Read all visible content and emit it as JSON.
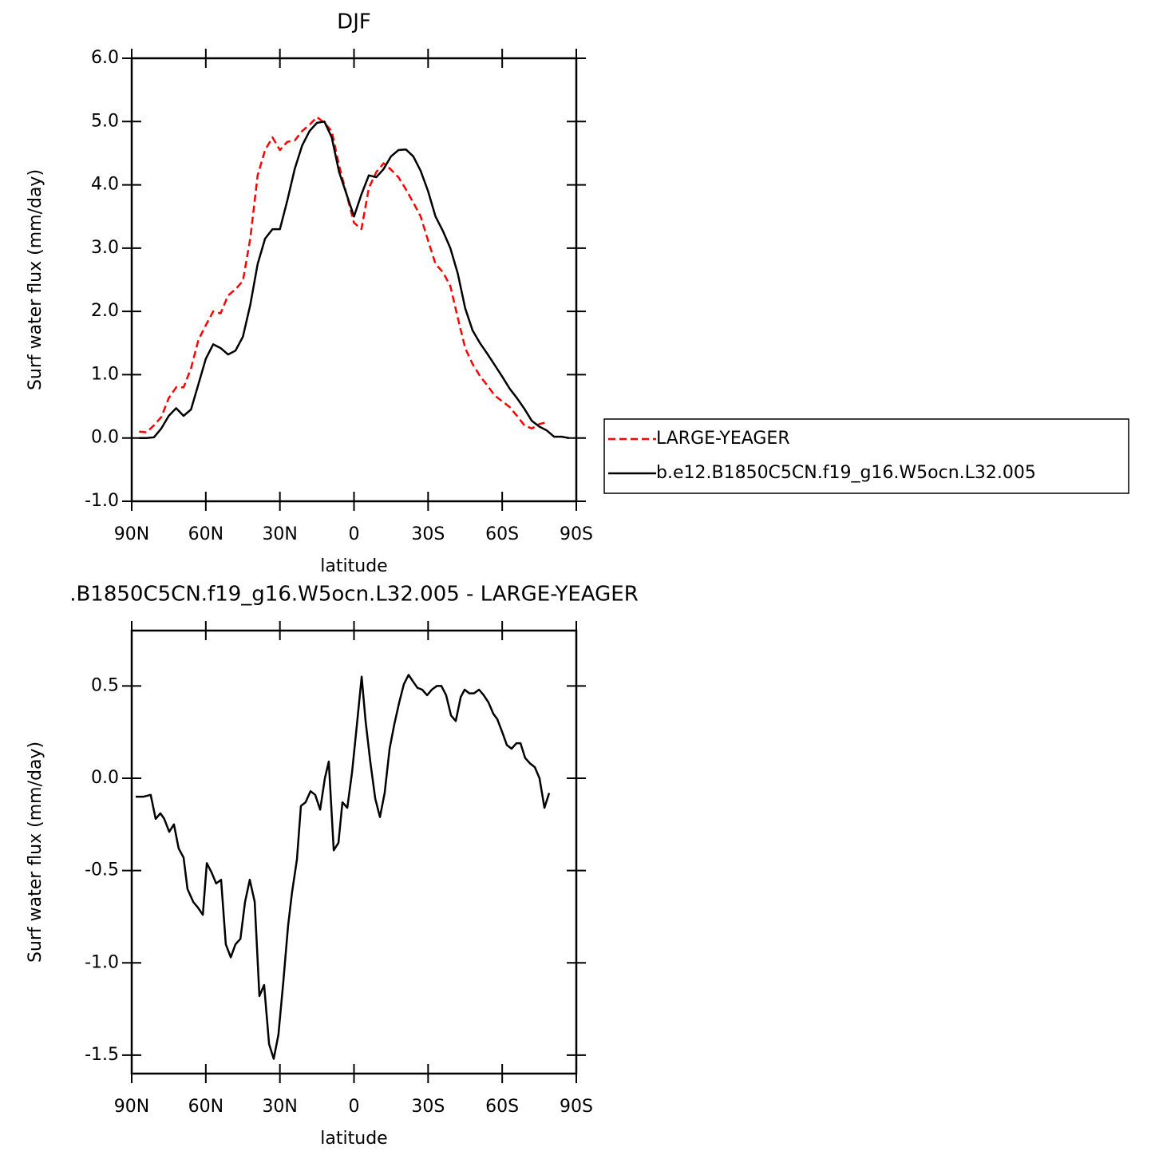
{
  "chart_data": [
    {
      "type": "line",
      "title": "DJF",
      "x_label": "latitude",
      "y_label": "Surf water flux (mm/day)",
      "x": [
        87,
        84,
        81,
        78,
        75,
        72,
        69,
        66,
        63,
        60,
        57,
        54,
        51,
        48,
        45,
        42,
        39,
        36,
        33,
        30,
        27,
        24,
        21,
        18,
        15,
        12,
        9,
        6,
        3,
        0,
        -3,
        -6,
        -9,
        -12,
        -15,
        -18,
        -21,
        -24,
        -27,
        -30,
        -33,
        -36,
        -39,
        -42,
        -45,
        -48,
        -51,
        -54,
        -57,
        -60,
        -63,
        -66,
        -69,
        -72,
        -75,
        -78,
        -81,
        -84,
        -87
      ],
      "xlim": [
        90,
        -90
      ],
      "xticks": [
        {
          "value": 90,
          "label": "90N"
        },
        {
          "value": 60,
          "label": "60N"
        },
        {
          "value": 30,
          "label": "30N"
        },
        0,
        {
          "value": -30,
          "label": "30S"
        },
        {
          "value": -60,
          "label": "60S"
        },
        {
          "value": -90,
          "label": "90S"
        }
      ],
      "ylim": [
        -1,
        6
      ],
      "yticks": [
        {
          "value": -1,
          "label": "-1.0"
        },
        {
          "value": 0,
          "label": "0.0"
        },
        {
          "value": 1,
          "label": "1.0"
        },
        {
          "value": 2,
          "label": "2.0"
        },
        {
          "value": 3,
          "label": "3.0"
        },
        {
          "value": 4,
          "label": "4.0"
        },
        {
          "value": 5,
          "label": "5.0"
        },
        {
          "value": 6,
          "label": "6.0"
        }
      ],
      "legend": "right",
      "series": [
        {
          "name": "LARGE-YEAGER",
          "color": "#ff0000",
          "dash": true,
          "values": [
            0.1,
            0.09,
            0.2,
            0.33,
            0.63,
            0.8,
            0.8,
            1.1,
            1.55,
            1.78,
            2.0,
            1.97,
            2.25,
            2.35,
            2.48,
            3.15,
            4.15,
            4.55,
            4.75,
            4.55,
            4.68,
            4.7,
            4.85,
            4.95,
            5.07,
            4.98,
            4.85,
            4.3,
            3.85,
            3.4,
            3.3,
            3.95,
            4.2,
            4.34,
            4.24,
            4.12,
            3.93,
            3.72,
            3.5,
            3.12,
            2.75,
            2.62,
            2.4,
            1.9,
            1.42,
            1.17,
            0.98,
            0.83,
            0.67,
            0.58,
            0.49,
            0.35,
            0.2,
            0.15,
            0.22,
            0.25,
            null,
            null,
            null
          ]
        },
        {
          "name": "b.e12.B1850C5CN.f19_g16.W5ocn.L32.005",
          "color": "#000000",
          "dash": false,
          "values": [
            0.0,
            0.0,
            0.01,
            0.15,
            0.35,
            0.47,
            0.35,
            0.45,
            0.85,
            1.25,
            1.48,
            1.42,
            1.32,
            1.38,
            1.6,
            2.1,
            2.75,
            3.15,
            3.3,
            3.3,
            3.75,
            4.25,
            4.62,
            4.85,
            4.98,
            5.0,
            4.75,
            4.2,
            3.85,
            3.5,
            3.85,
            4.15,
            4.12,
            4.25,
            4.45,
            4.55,
            4.56,
            4.45,
            4.22,
            3.9,
            3.5,
            3.27,
            3.0,
            2.6,
            2.05,
            1.7,
            1.5,
            1.33,
            1.15,
            0.97,
            0.78,
            0.63,
            0.46,
            0.27,
            0.18,
            0.12,
            0.02,
            0.02,
            0.0
          ]
        }
      ]
    },
    {
      "type": "line",
      "title": ".B1850C5CN.f19_g16.W5ocn.L32.005 - LARGE-YEAGER",
      "x_label": "latitude",
      "y_label": "Surf water flux (mm/day)",
      "x": [
        88.4,
        85.2,
        82.3,
        80.3,
        78.4,
        76.8,
        74.8,
        72.9,
        71,
        69,
        67.4,
        65.1,
        63.2,
        61.2,
        59.6,
        57.7,
        55.8,
        53.8,
        51.9,
        49.9,
        48,
        46,
        44.1,
        42.2,
        40.2,
        38.3,
        36.4,
        34.4,
        32.5,
        30.6,
        28.6,
        26.7,
        25.1,
        23.1,
        21.5,
        19.6,
        17.6,
        15.7,
        13.7,
        11.8,
        10.2,
        8.2,
        6.3,
        4.7,
        2.7,
        0.8,
        -1.1,
        -3.1,
        -4.7,
        -6.6,
        -8.6,
        -10.5,
        -12.4,
        -14.4,
        -16.3,
        -18.3,
        -20.2,
        -22.1,
        -24.1,
        -25.7,
        -27.6,
        -29.6,
        -31.5,
        -33.5,
        -35.4,
        -37.3,
        -39.3,
        -41.2,
        -43.2,
        -44.8,
        -46.7,
        -48.6,
        -50.6,
        -52.5,
        -54.5,
        -56.4,
        -58,
        -60,
        -61.9,
        -63.8,
        -65.8,
        -67.4,
        -69.3,
        -71.3,
        -73.2,
        -75.1,
        -77.1,
        -79
      ],
      "xlim": [
        90,
        -90
      ],
      "xticks": [
        {
          "value": 90,
          "label": "90N"
        },
        {
          "value": 60,
          "label": "60N"
        },
        {
          "value": 30,
          "label": "30N"
        },
        0,
        {
          "value": -30,
          "label": "30S"
        },
        {
          "value": -60,
          "label": "60S"
        },
        {
          "value": -90,
          "label": "90S"
        }
      ],
      "ylim": [
        -1.6,
        0.8
      ],
      "yticks": [
        -1.5,
        {
          "value": -1,
          "label": "-1.0"
        },
        -0.5,
        {
          "value": 0,
          "label": "0.0"
        },
        0.5
      ],
      "series": [
        {
          "color": "#000000",
          "dash": false,
          "values": [
            -0.1,
            -0.1,
            -0.09,
            -0.22,
            -0.19,
            -0.22,
            -0.29,
            -0.25,
            -0.38,
            -0.43,
            -0.6,
            -0.67,
            -0.7,
            -0.74,
            -0.46,
            -0.51,
            -0.57,
            -0.55,
            -0.9,
            -0.97,
            -0.9,
            -0.87,
            -0.67,
            -0.55,
            -0.67,
            -1.18,
            -1.12,
            -1.44,
            -1.52,
            -1.39,
            -1.1,
            -0.8,
            -0.62,
            -0.44,
            -0.15,
            -0.13,
            -0.07,
            -0.09,
            -0.17,
            0.0,
            0.09,
            -0.39,
            -0.35,
            -0.13,
            -0.16,
            0.03,
            0.28,
            0.55,
            0.31,
            0.09,
            -0.11,
            -0.21,
            -0.08,
            0.16,
            0.29,
            0.41,
            0.51,
            0.56,
            0.52,
            0.49,
            0.48,
            0.45,
            0.48,
            0.5,
            0.5,
            0.45,
            0.34,
            0.31,
            0.44,
            0.48,
            0.46,
            0.46,
            0.48,
            0.45,
            0.41,
            0.35,
            0.32,
            0.25,
            0.18,
            0.16,
            0.19,
            0.19,
            0.11,
            0.08,
            0.06,
            0.0,
            -0.16,
            -0.08
          ]
        }
      ]
    }
  ]
}
